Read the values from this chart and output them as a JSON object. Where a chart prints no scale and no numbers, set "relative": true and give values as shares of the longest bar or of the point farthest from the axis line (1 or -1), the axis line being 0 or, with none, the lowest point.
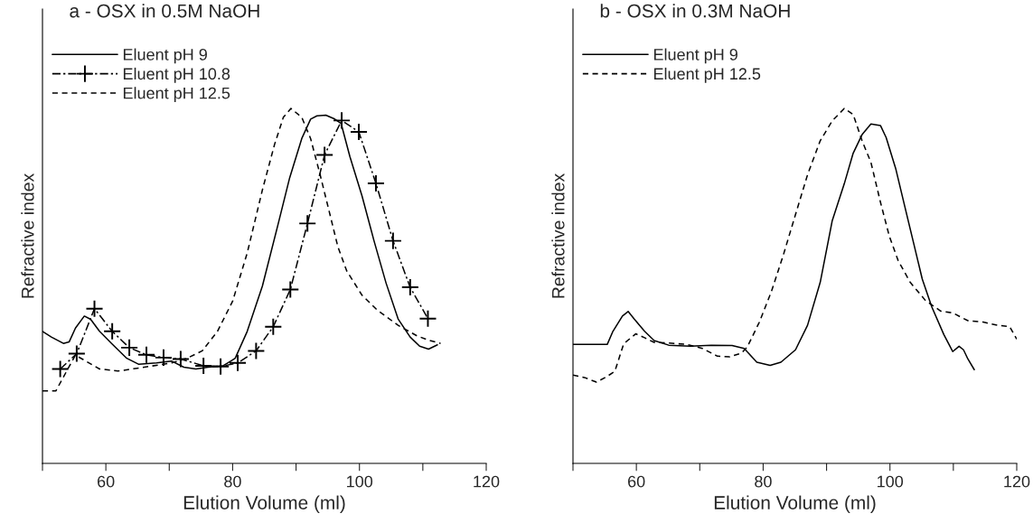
{
  "chart_data": [
    {
      "type": "line",
      "title": "a - OSX in 0.5M NaOH",
      "xlabel": "Elution Volume (ml)",
      "ylabel": "Refractive index",
      "relative": true,
      "legend": "top left",
      "grid": false,
      "xlim": [
        50,
        120
      ],
      "xticks": [
        {
          "value": 50,
          "label": null
        },
        60,
        {
          "value": 70,
          "label": null
        },
        80,
        {
          "value": 90,
          "label": null
        },
        100,
        {
          "value": 110,
          "label": null
        },
        120
      ],
      "series": [
        {
          "name": "Eluent pH 9",
          "color": "#000000",
          "line_style": "solid",
          "marker": "none",
          "x": [
            50,
            51.4,
            53.3,
            54.2,
            55.2,
            56.6,
            57.6,
            59.0,
            60.9,
            63.3,
            65.2,
            68.0,
            70.4,
            72.3,
            74.2,
            76.1,
            78.5,
            80.4,
            82.3,
            84.7,
            87.1,
            89.0,
            90.9,
            92.3,
            93.3,
            94.7,
            96.1,
            97.1,
            98.5,
            100.4,
            102.3,
            104.2,
            106.1,
            108.0,
            109.5,
            110.9,
            112.3
          ],
          "values": [
            0.372,
            0.356,
            0.338,
            0.342,
            0.381,
            0.415,
            0.406,
            0.372,
            0.338,
            0.296,
            0.279,
            0.283,
            0.288,
            0.271,
            0.266,
            0.271,
            0.275,
            0.296,
            0.372,
            0.5,
            0.669,
            0.805,
            0.915,
            0.97,
            0.979,
            0.981,
            0.97,
            0.958,
            0.864,
            0.754,
            0.627,
            0.508,
            0.407,
            0.356,
            0.33,
            0.322,
            0.334
          ]
        },
        {
          "name": "Eluent pH 10.8",
          "color": "#000000",
          "line_style": "dashdot",
          "marker": "cross",
          "x": [
            52.8,
            55.4,
            58.2,
            61.0,
            63.7,
            66.4,
            69.1,
            71.8,
            75.4,
            78.1,
            80.8,
            83.7,
            86.4,
            89.1,
            91.8,
            94.5,
            97.2,
            99.9,
            102.6,
            105.3,
            108.0,
            110.8
          ],
          "values": [
            0.266,
            0.309,
            0.436,
            0.372,
            0.326,
            0.306,
            0.298,
            0.294,
            0.275,
            0.273,
            0.283,
            0.317,
            0.385,
            0.49,
            0.676,
            0.869,
            0.966,
            0.934,
            0.789,
            0.627,
            0.496,
            0.408
          ]
        },
        {
          "name": "Eluent pH 12.5",
          "color": "#000000",
          "line_style": "dashed",
          "marker": "none",
          "x": [
            50,
            52.1,
            55.2,
            59.0,
            61.9,
            65.7,
            70.4,
            72.8,
            75.2,
            77.6,
            80.0,
            82.3,
            84.7,
            86.6,
            88.0,
            89.2,
            90.9,
            92.3,
            93.8,
            95.2,
            96.6,
            98.0,
            100.4,
            102.8,
            106.1,
            109.0,
            110.9,
            112.8
          ],
          "values": [
            0.204,
            0.204,
            0.305,
            0.266,
            0.26,
            0.27,
            0.283,
            0.296,
            0.317,
            0.372,
            0.457,
            0.593,
            0.771,
            0.898,
            0.975,
            1.0,
            0.975,
            0.915,
            0.813,
            0.712,
            0.61,
            0.542,
            0.474,
            0.432,
            0.389,
            0.36,
            0.347,
            0.338
          ]
        }
      ]
    },
    {
      "type": "line",
      "title": "b - OSX in 0.3M NaOH",
      "xlabel": "Elution Volume (ml)",
      "ylabel": "Refractive index",
      "relative": true,
      "legend": "top left",
      "grid": false,
      "xlim": [
        50,
        120
      ],
      "xticks": [
        {
          "value": 50,
          "label": null
        },
        60,
        {
          "value": 70,
          "label": null
        },
        80,
        {
          "value": 90,
          "label": null
        },
        100,
        {
          "value": 110,
          "label": null
        },
        120
      ],
      "series": [
        {
          "name": "Eluent pH 9",
          "color": "#000000",
          "line_style": "solid",
          "marker": "none",
          "x": [
            50,
            55.4,
            56.3,
            57.8,
            58.7,
            59.7,
            61.3,
            62.8,
            65.1,
            68.5,
            71.8,
            75.1,
            77.0,
            79.0,
            81.1,
            82.8,
            85.1,
            87.0,
            89.0,
            90.9,
            92.8,
            94.2,
            95.6,
            97.0,
            98.5,
            99.4,
            100.9,
            102.3,
            103.7,
            105.1,
            106.6,
            108.5,
            109.9,
            110.9,
            111.6,
            112.3,
            113.3
          ],
          "values": [
            0.335,
            0.335,
            0.372,
            0.415,
            0.428,
            0.406,
            0.372,
            0.346,
            0.333,
            0.33,
            0.333,
            0.332,
            0.324,
            0.285,
            0.276,
            0.285,
            0.32,
            0.389,
            0.51,
            0.684,
            0.788,
            0.874,
            0.926,
            0.956,
            0.952,
            0.918,
            0.831,
            0.727,
            0.623,
            0.519,
            0.441,
            0.363,
            0.315,
            0.33,
            0.32,
            0.294,
            0.264
          ]
        },
        {
          "name": "Eluent pH 12.5",
          "color": "#000000",
          "line_style": "dashed",
          "marker": "none",
          "x": [
            50,
            51.8,
            53.7,
            55.1,
            56.6,
            58.0,
            59.9,
            61.3,
            62.8,
            65.1,
            68.0,
            70.4,
            72.8,
            74.7,
            76.6,
            77.5,
            79.4,
            81.3,
            83.2,
            85.1,
            87.0,
            89.0,
            90.9,
            92.8,
            94.2,
            95.6,
            97.0,
            98.5,
            99.9,
            101.3,
            103.2,
            105.6,
            108.0,
            109.9,
            112.3,
            114.7,
            117.0,
            118.9,
            120.0
          ],
          "values": [
            0.249,
            0.242,
            0.229,
            0.242,
            0.259,
            0.337,
            0.365,
            0.354,
            0.341,
            0.339,
            0.335,
            0.324,
            0.302,
            0.3,
            0.311,
            0.328,
            0.398,
            0.484,
            0.588,
            0.701,
            0.813,
            0.909,
            0.965,
            1.0,
            0.983,
            0.909,
            0.848,
            0.736,
            0.64,
            0.571,
            0.51,
            0.459,
            0.429,
            0.424,
            0.402,
            0.398,
            0.389,
            0.385,
            0.35
          ]
        }
      ]
    }
  ]
}
